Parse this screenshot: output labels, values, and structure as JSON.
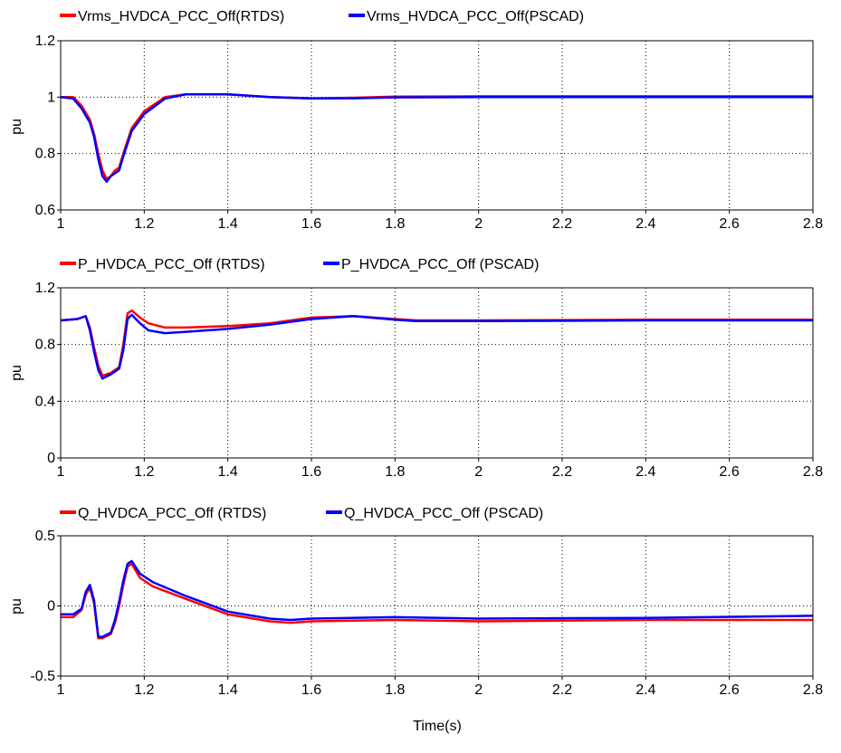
{
  "colors": {
    "rtds": "#ff0000",
    "pscad": "#0000ff",
    "grid": "#000000",
    "background": "#ffffff"
  },
  "chart_data": [
    {
      "type": "line",
      "ylabel": "pu",
      "xlabel": "",
      "xlim": [
        1,
        2.8
      ],
      "ylim": [
        0.6,
        1.2
      ],
      "xticks": [
        "1",
        "1.2",
        "1.4",
        "1.6",
        "1.8",
        "2",
        "2.2",
        "2.4",
        "2.6",
        "2.8"
      ],
      "yticks": [
        "0.6",
        "0.8",
        "1",
        "1.2"
      ],
      "grid": true,
      "legend": "top-left",
      "series": [
        {
          "name": "Vrms_HVDCA_PCC_Off(RTDS)",
          "color": "#ff0000",
          "x": [
            1.0,
            1.03,
            1.05,
            1.07,
            1.08,
            1.09,
            1.1,
            1.11,
            1.12,
            1.13,
            1.14,
            1.15,
            1.17,
            1.2,
            1.25,
            1.3,
            1.35,
            1.4,
            1.5,
            1.6,
            1.7,
            1.8,
            2.0,
            2.4,
            2.8
          ],
          "y": [
            1.0,
            1.0,
            0.97,
            0.92,
            0.87,
            0.8,
            0.74,
            0.71,
            0.72,
            0.74,
            0.75,
            0.8,
            0.89,
            0.95,
            1.0,
            1.01,
            1.01,
            1.01,
            1.0,
            0.995,
            0.998,
            1.002,
            1.003,
            1.003,
            1.003
          ]
        },
        {
          "name": "Vrms_HVDCA_PCC_Off(PSCAD)",
          "color": "#0000ff",
          "x": [
            1.0,
            1.03,
            1.05,
            1.07,
            1.08,
            1.09,
            1.1,
            1.11,
            1.12,
            1.13,
            1.14,
            1.15,
            1.17,
            1.2,
            1.25,
            1.3,
            1.35,
            1.4,
            1.5,
            1.6,
            1.7,
            1.8,
            2.0,
            2.4,
            2.8
          ],
          "y": [
            1.0,
            0.995,
            0.96,
            0.91,
            0.86,
            0.78,
            0.72,
            0.7,
            0.72,
            0.73,
            0.74,
            0.79,
            0.88,
            0.94,
            0.995,
            1.01,
            1.01,
            1.01,
            1.0,
            0.996,
            0.996,
            0.999,
            1.0,
            1.0,
            1.0
          ]
        }
      ]
    },
    {
      "type": "line",
      "ylabel": "pu",
      "xlabel": "",
      "xlim": [
        1,
        2.8
      ],
      "ylim": [
        0,
        1.2
      ],
      "xticks": [
        "1",
        "1.2",
        "1.4",
        "1.6",
        "1.8",
        "2",
        "2.2",
        "2.4",
        "2.6",
        "2.8"
      ],
      "yticks": [
        "0",
        "0.4",
        "0.8",
        "1.2"
      ],
      "grid": true,
      "legend": "top-left",
      "series": [
        {
          "name": "P_HVDCA_PCC_Off (RTDS)",
          "color": "#ff0000",
          "x": [
            1.0,
            1.04,
            1.06,
            1.07,
            1.08,
            1.09,
            1.1,
            1.12,
            1.14,
            1.15,
            1.16,
            1.17,
            1.19,
            1.21,
            1.25,
            1.3,
            1.4,
            1.5,
            1.6,
            1.7,
            1.8,
            1.85,
            2.0,
            2.4,
            2.8
          ],
          "y": [
            0.97,
            0.98,
            1.0,
            0.92,
            0.78,
            0.65,
            0.58,
            0.6,
            0.64,
            0.8,
            1.02,
            1.04,
            0.99,
            0.95,
            0.92,
            0.92,
            0.93,
            0.95,
            0.99,
            1.0,
            0.98,
            0.97,
            0.97,
            0.975,
            0.975
          ]
        },
        {
          "name": "P_HVDCA_PCC_Off (PSCAD)",
          "color": "#0000ff",
          "x": [
            1.0,
            1.04,
            1.06,
            1.07,
            1.08,
            1.09,
            1.1,
            1.12,
            1.14,
            1.15,
            1.16,
            1.17,
            1.19,
            1.21,
            1.25,
            1.3,
            1.4,
            1.5,
            1.6,
            1.7,
            1.8,
            1.85,
            2.0,
            2.4,
            2.8
          ],
          "y": [
            0.97,
            0.98,
            1.0,
            0.9,
            0.75,
            0.62,
            0.56,
            0.59,
            0.63,
            0.76,
            0.98,
            1.01,
            0.95,
            0.9,
            0.88,
            0.89,
            0.91,
            0.94,
            0.98,
            1.0,
            0.975,
            0.965,
            0.965,
            0.97,
            0.97
          ]
        }
      ]
    },
    {
      "type": "line",
      "ylabel": "pu",
      "xlabel": "Time(s)",
      "xlim": [
        1,
        2.8
      ],
      "ylim": [
        -0.5,
        0.5
      ],
      "xticks": [
        "1",
        "1.2",
        "1.4",
        "1.6",
        "1.8",
        "2",
        "2.2",
        "2.4",
        "2.6",
        "2.8"
      ],
      "yticks": [
        "-0.5",
        "0",
        "0.5"
      ],
      "grid": true,
      "legend": "top-left",
      "series": [
        {
          "name": "Q_HVDCA_PCC_Off (RTDS)",
          "color": "#ff0000",
          "x": [
            1.0,
            1.03,
            1.05,
            1.06,
            1.07,
            1.08,
            1.09,
            1.1,
            1.12,
            1.13,
            1.14,
            1.15,
            1.16,
            1.17,
            1.19,
            1.22,
            1.3,
            1.4,
            1.5,
            1.55,
            1.6,
            1.8,
            2.0,
            2.4,
            2.8
          ],
          "y": [
            -0.08,
            -0.08,
            -0.03,
            0.08,
            0.13,
            0.02,
            -0.23,
            -0.23,
            -0.2,
            -0.12,
            0.0,
            0.15,
            0.28,
            0.3,
            0.2,
            0.14,
            0.05,
            -0.06,
            -0.11,
            -0.12,
            -0.11,
            -0.1,
            -0.11,
            -0.1,
            -0.1
          ]
        },
        {
          "name": "Q_HVDCA_PCC_Off (PSCAD)",
          "color": "#0000ff",
          "x": [
            1.0,
            1.03,
            1.05,
            1.06,
            1.07,
            1.08,
            1.09,
            1.1,
            1.12,
            1.13,
            1.14,
            1.15,
            1.16,
            1.17,
            1.19,
            1.22,
            1.3,
            1.4,
            1.5,
            1.55,
            1.6,
            1.8,
            2.0,
            2.4,
            2.8
          ],
          "y": [
            -0.06,
            -0.06,
            -0.02,
            0.1,
            0.15,
            0.04,
            -0.22,
            -0.22,
            -0.19,
            -0.1,
            0.03,
            0.18,
            0.3,
            0.32,
            0.23,
            0.17,
            0.07,
            -0.04,
            -0.09,
            -0.1,
            -0.09,
            -0.08,
            -0.09,
            -0.085,
            -0.07
          ]
        }
      ]
    }
  ]
}
